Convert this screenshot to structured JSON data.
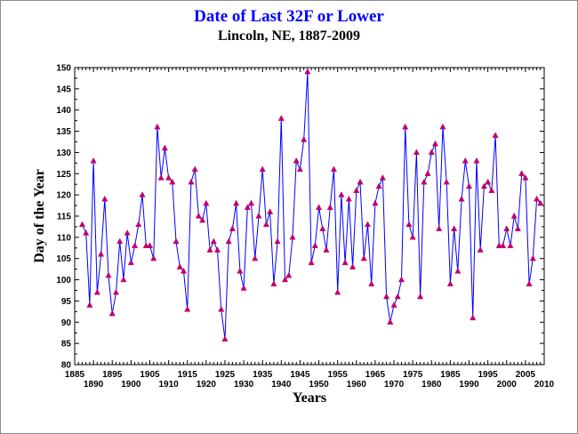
{
  "chart_data": {
    "type": "line",
    "title": "Date of Last 32F or Lower",
    "subtitle": "Lincoln, NE, 1887-2009",
    "xlabel": "Years",
    "ylabel": "Day of the Year",
    "xlim": [
      1885,
      2010
    ],
    "ylim": [
      80,
      150
    ],
    "y_ticks": [
      "80",
      "85",
      "90",
      "95",
      "100",
      "105",
      "110",
      "115",
      "120",
      "125",
      "130",
      "135",
      "140",
      "145",
      "150"
    ],
    "x_ticks_top": [
      "1885",
      "1895",
      "1905",
      "1915",
      "1925",
      "1935",
      "1945",
      "1955",
      "1965",
      "1975",
      "1985",
      "1995",
      "2005"
    ],
    "x_ticks_bottom": [
      "1890",
      "1900",
      "1910",
      "1920",
      "1930",
      "1940",
      "1950",
      "1960",
      "1970",
      "1980",
      "1990",
      "2000",
      "2010"
    ],
    "grid": false,
    "line_color": "#0000ff",
    "marker_color": "#c0006a",
    "title_color": "#0000ff",
    "series": [
      {
        "x": [
          1887,
          1888,
          1889,
          1890,
          1891,
          1892,
          1893,
          1894,
          1895,
          1896,
          1897,
          1898,
          1899,
          1900,
          1901,
          1902,
          1903,
          1904,
          1905,
          1906,
          1907,
          1908,
          1909,
          1910,
          1911,
          1912,
          1913,
          1914,
          1915,
          1916,
          1917,
          1918,
          1919,
          1920,
          1921,
          1922,
          1923,
          1924,
          1925,
          1926,
          1927,
          1928,
          1929,
          1930,
          1931,
          1932,
          1933,
          1934,
          1935,
          1936,
          1937,
          1938,
          1939,
          1940,
          1941,
          1942,
          1943,
          1944,
          1945,
          1946,
          1947,
          1948,
          1949,
          1950,
          1951,
          1952,
          1953,
          1954,
          1955,
          1956,
          1957,
          1958,
          1959,
          1960,
          1961,
          1962,
          1963,
          1964,
          1965,
          1966,
          1967,
          1968,
          1969,
          1970,
          1971,
          1972,
          1973,
          1974,
          1975,
          1976,
          1977,
          1978,
          1979,
          1980,
          1981,
          1982,
          1983,
          1984,
          1985,
          1986,
          1987,
          1988,
          1989,
          1990,
          1991,
          1992,
          1993,
          1994,
          1995,
          1996,
          1997,
          1998,
          1999,
          2000,
          2001,
          2002,
          2003,
          2004,
          2005,
          2006,
          2007,
          2008,
          2009
        ],
        "values": [
          113,
          111,
          94,
          128,
          97,
          106,
          119,
          101,
          92,
          97,
          109,
          100,
          111,
          104,
          108,
          113,
          120,
          108,
          108,
          105,
          136,
          124,
          131,
          124,
          123,
          109,
          103,
          102,
          93,
          123,
          126,
          115,
          114,
          118,
          107,
          109,
          107,
          93,
          86,
          109,
          112,
          118,
          102,
          98,
          117,
          118,
          105,
          115,
          126,
          113,
          116,
          99,
          109,
          138,
          100,
          101,
          110,
          128,
          126,
          133,
          149,
          104,
          108,
          117,
          112,
          107,
          117,
          126,
          97,
          120,
          104,
          119,
          103,
          121,
          123,
          105,
          113,
          99,
          118,
          122,
          124,
          96,
          90,
          94,
          96,
          100,
          136,
          113,
          110,
          130,
          96,
          123,
          125,
          130,
          132,
          112,
          136,
          123,
          99,
          112,
          102,
          119,
          128,
          122,
          91,
          128,
          107,
          122,
          123,
          121,
          134,
          108,
          108,
          112,
          108,
          115,
          112,
          125,
          124,
          99,
          105,
          119,
          118
        ]
      }
    ]
  }
}
